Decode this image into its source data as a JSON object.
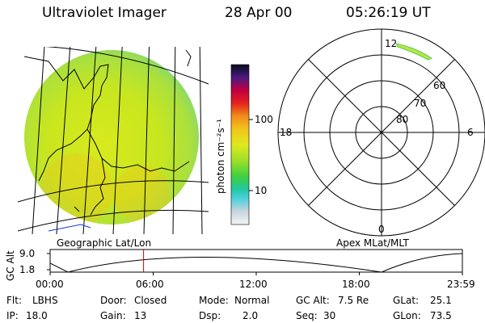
{
  "header": {
    "instrument": "Ultraviolet Imager",
    "date": "28 Apr 00",
    "time": "05:26:19 UT"
  },
  "colorbar": {
    "unit_label": "photon cm⁻²s⁻¹",
    "ticks": [
      "100",
      "10"
    ]
  },
  "polar": {
    "mlt_labels": [
      "12",
      "18",
      "6",
      "0"
    ],
    "lat_labels": [
      "60",
      "70",
      "80"
    ]
  },
  "panels": {
    "left_caption": "Geographic Lat/Lon",
    "right_caption": "Apex MLat/MLT"
  },
  "altitude_plot": {
    "ylabel": "GC Alt",
    "y_ticks": [
      "9.0",
      "1.8"
    ],
    "x_ticks": [
      "00:00",
      "06:00",
      "12:00",
      "18:00",
      "23:59"
    ],
    "current_time_hours": 5.44
  },
  "info": {
    "flt_label": "Flt:",
    "flt_value": "LBHS",
    "ip_label": "IP:",
    "ip_value": "18.0",
    "door_label": "Door:",
    "door_value": "Closed",
    "gain_label": "Gain:",
    "gain_value": "13",
    "mode_label": "Mode:",
    "mode_value": "Normal",
    "dsp_label": "Dsp:",
    "dsp_value": "2.0",
    "gcalt_label": "GC Alt:",
    "gcalt_value": "7.5 Re",
    "seq_label": "Seq:",
    "seq_value": "30",
    "glat_label": "GLat:",
    "glat_value": "25.1",
    "glon_label": "GLon:",
    "glon_value": "73.5"
  },
  "colors": {
    "red_marker": "#d40000",
    "disk_fill": "#c6e820"
  }
}
